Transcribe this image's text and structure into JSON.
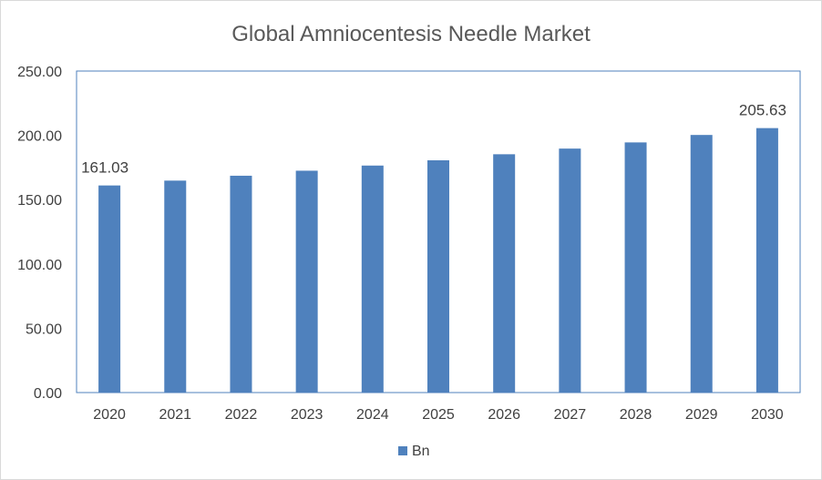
{
  "chart_data": {
    "type": "bar",
    "title": "Global Amniocentesis Needle Market",
    "categories": [
      "2020",
      "2021",
      "2022",
      "2023",
      "2024",
      "2025",
      "2026",
      "2027",
      "2028",
      "2029",
      "2030"
    ],
    "series": [
      {
        "name": "Bn",
        "values": [
          161.03,
          164.8,
          168.6,
          172.5,
          176.5,
          180.6,
          185.3,
          189.7,
          194.5,
          200.3,
          205.63
        ],
        "color": "#4f81bd"
      }
    ],
    "data_labels": [
      {
        "category": "2020",
        "text": "161.03"
      },
      {
        "category": "2030",
        "text": "205.63"
      }
    ],
    "y_ticks": [
      "0.00",
      "50.00",
      "100.00",
      "150.00",
      "200.00",
      "250.00"
    ],
    "ylim": [
      0,
      250
    ],
    "xlabel": "",
    "ylabel": "",
    "grid": false,
    "legend_position": "bottom"
  }
}
